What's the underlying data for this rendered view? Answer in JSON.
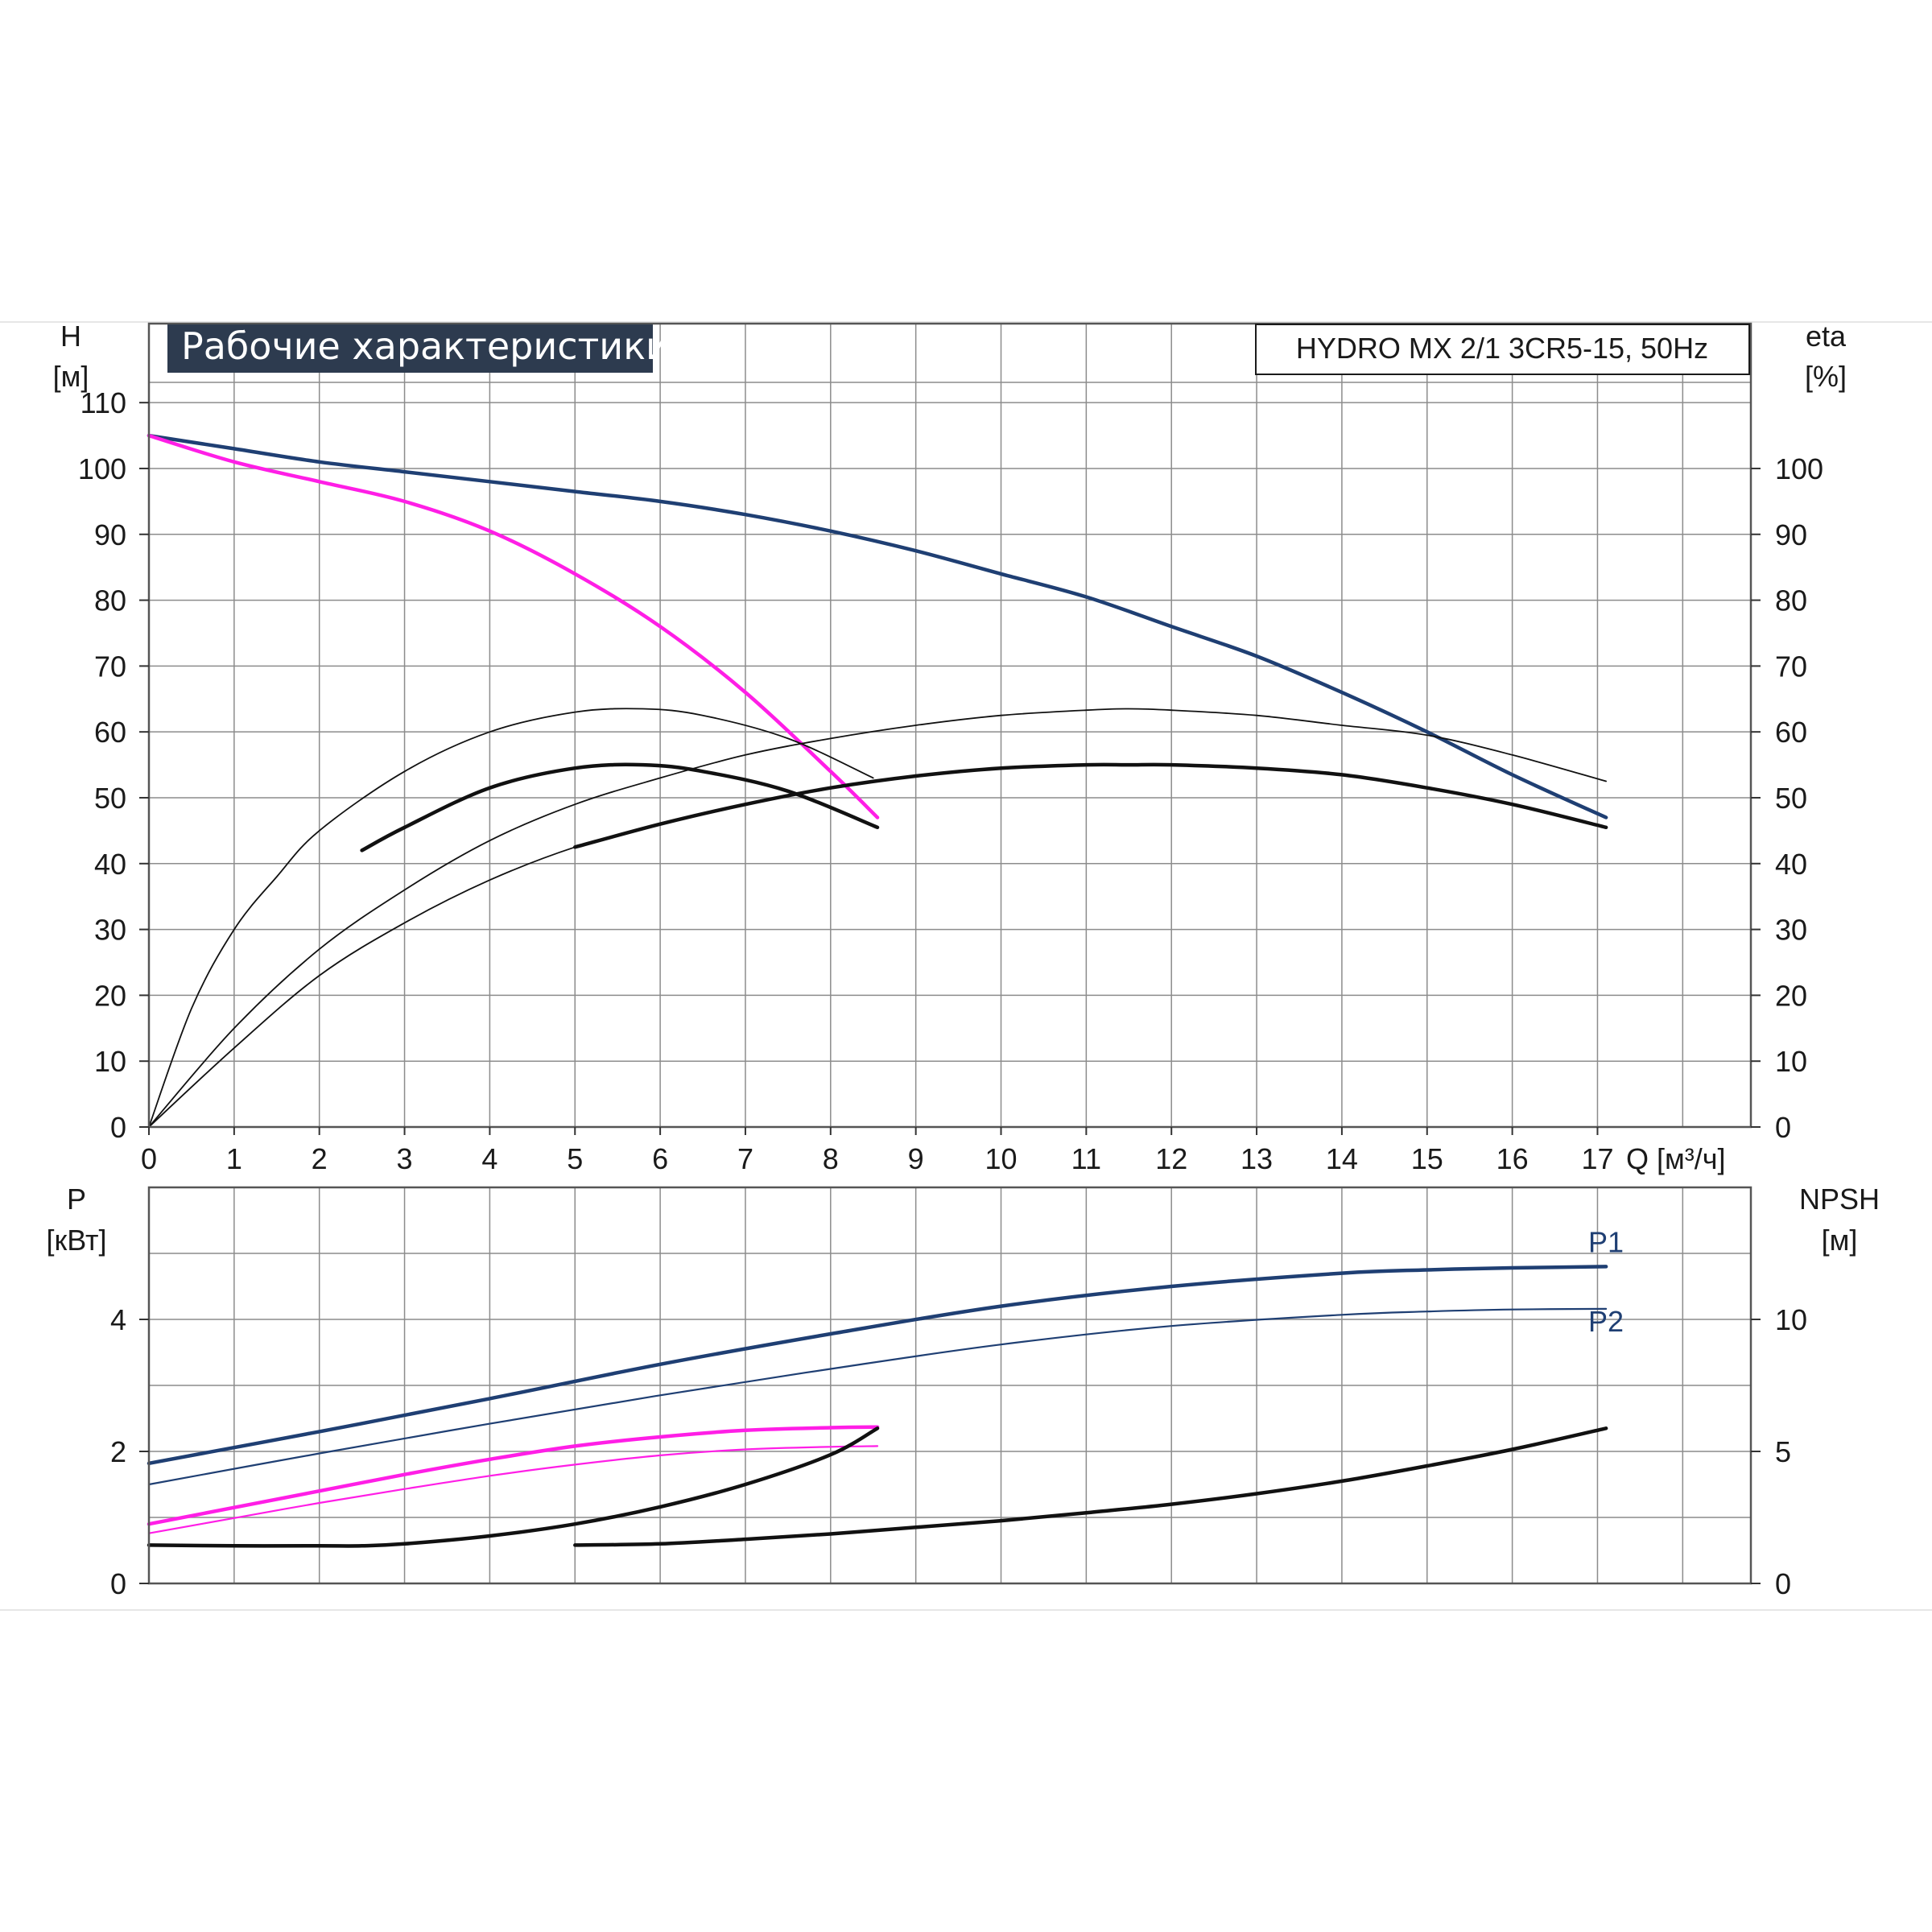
{
  "title": "Рабочие характеристики",
  "model": "HYDRO MX 2/1 3CR5-15, 50Hz",
  "colors": {
    "blue": "#1f3f73",
    "magenta": "#ff1ee6",
    "black": "#111111",
    "grid": "#8c8c8c",
    "title_bg": "#2d3b4f"
  },
  "chart_data": [
    {
      "type": "line",
      "xlabel": "Q [м³/ч]",
      "xlim": [
        0,
        18.8
      ],
      "x_ticks": [
        0,
        1,
        2,
        3,
        4,
        5,
        6,
        7,
        8,
        9,
        10,
        11,
        12,
        13,
        14,
        15,
        16,
        17
      ],
      "left_axis": {
        "label_top": "H",
        "label_unit": "[м]",
        "ylim": [
          0,
          122
        ],
        "ticks": [
          0,
          10,
          20,
          30,
          40,
          50,
          60,
          70,
          80,
          90,
          100,
          110
        ]
      },
      "right_axis": {
        "label_top": "eta",
        "label_unit": "[%]",
        "ylim": [
          0,
          122
        ],
        "ticks": [
          0,
          10,
          20,
          30,
          40,
          50,
          60,
          70,
          80,
          90,
          100
        ]
      },
      "grid": true,
      "series": [
        {
          "key": "h_two",
          "color": "blue",
          "width": 4.5,
          "x": [
            0,
            1,
            2,
            3,
            4,
            5,
            6,
            7,
            8,
            9,
            10,
            11,
            12,
            13,
            14,
            15,
            16,
            17.1
          ],
          "y": [
            105,
            103,
            101,
            99.5,
            98,
            96.5,
            95,
            93,
            90.5,
            87.5,
            84,
            80.5,
            76,
            71.5,
            66,
            60,
            53.5,
            47
          ]
        },
        {
          "key": "h_one",
          "color": "magenta",
          "width": 4.5,
          "x": [
            0,
            1,
            2,
            3,
            4,
            5,
            6,
            7,
            8,
            8.55
          ],
          "y": [
            105,
            101,
            98,
            95,
            90.5,
            84,
            76,
            66,
            54,
            47
          ]
        },
        {
          "key": "eta_one_thin",
          "color": "black",
          "width": 1.8,
          "x": [
            0,
            0.5,
            1,
            1.5,
            2,
            3,
            4,
            5,
            5.8,
            6.5,
            7.5,
            8.5
          ],
          "y": [
            0,
            18,
            30,
            38,
            45,
            54,
            60,
            63,
            63.5,
            62.5,
            59,
            53
          ]
        },
        {
          "key": "eta_one_thick",
          "color": "black",
          "width": 4.5,
          "x": [
            2.5,
            3,
            4,
            5,
            5.8,
            6.5,
            7.5,
            8.55
          ],
          "y": [
            42,
            45.5,
            51.5,
            54.5,
            55,
            54,
            51,
            45.5
          ]
        },
        {
          "key": "eta_two_thin",
          "color": "black",
          "width": 1.8,
          "x": [
            0,
            1,
            2,
            3,
            4,
            5,
            6,
            7,
            8,
            9,
            10,
            11,
            11.5,
            12,
            13,
            14,
            15,
            16,
            17.1
          ],
          "y": [
            0,
            15,
            27,
            36,
            43.5,
            49,
            53,
            56.5,
            59,
            61,
            62.5,
            63.3,
            63.5,
            63.3,
            62.5,
            61,
            59.5,
            56.5,
            52.5
          ]
        },
        {
          "key": "eta_two_thin_b",
          "color": "black",
          "width": 1.8,
          "x": [
            0,
            1,
            2,
            3,
            4,
            5,
            6,
            7,
            8,
            9,
            10,
            11,
            11.5,
            12,
            13,
            14,
            15,
            16,
            17.1
          ],
          "y": [
            0,
            12,
            23,
            31,
            37.5,
            42.5,
            46,
            49,
            51.5,
            53.3,
            54.5,
            55,
            55,
            55,
            54.5,
            53.5,
            51.5,
            49,
            45.5
          ]
        },
        {
          "key": "eta_two_thick",
          "color": "black",
          "width": 4.5,
          "x": [
            5,
            6,
            7,
            8,
            9,
            10,
            11,
            11.5,
            12,
            13,
            14,
            15,
            16,
            17.1
          ],
          "y": [
            42.5,
            46,
            49,
            51.5,
            53.3,
            54.5,
            55,
            55,
            55,
            54.5,
            53.5,
            51.5,
            49,
            45.5
          ]
        }
      ],
      "annotations": []
    },
    {
      "type": "line",
      "xlim": [
        0,
        18.8
      ],
      "left_axis": {
        "label_top": "P",
        "label_unit": "[кВт]",
        "ylim": [
          0,
          6
        ],
        "ticks": [
          0,
          2,
          4
        ]
      },
      "right_axis": {
        "label_top": "NPSH",
        "label_unit": "[м]",
        "ylim": [
          0,
          15
        ],
        "ticks": [
          0,
          5,
          10
        ]
      },
      "grid": true,
      "series": [
        {
          "key": "p1_two",
          "name": "P1",
          "color": "blue",
          "width": 4.5,
          "x": [
            0,
            2,
            4,
            6,
            8,
            10,
            12,
            14,
            15,
            16,
            17.1
          ],
          "y": [
            1.82,
            2.3,
            2.8,
            3.32,
            3.78,
            4.2,
            4.5,
            4.7,
            4.75,
            4.78,
            4.8
          ]
        },
        {
          "key": "p2_two",
          "name": "P2",
          "color": "blue",
          "width": 2.2,
          "x": [
            0,
            2,
            4,
            6,
            8,
            10,
            12,
            14,
            15,
            16,
            17.1
          ],
          "y": [
            1.5,
            1.97,
            2.42,
            2.85,
            3.25,
            3.62,
            3.9,
            4.07,
            4.12,
            4.15,
            4.16
          ]
        },
        {
          "key": "p1_one",
          "color": "magenta",
          "width": 4.5,
          "x": [
            0,
            1,
            2,
            3,
            4,
            5,
            6,
            7,
            8,
            8.55
          ],
          "y": [
            0.9,
            1.15,
            1.4,
            1.65,
            1.88,
            2.08,
            2.22,
            2.32,
            2.36,
            2.37
          ]
        },
        {
          "key": "p2_one",
          "color": "magenta",
          "width": 2.2,
          "x": [
            0,
            1,
            2,
            3,
            4,
            5,
            6,
            7,
            8,
            8.55
          ],
          "y": [
            0.76,
            0.99,
            1.22,
            1.43,
            1.63,
            1.8,
            1.94,
            2.03,
            2.07,
            2.08
          ]
        },
        {
          "key": "npsh_one",
          "color": "black",
          "width": 4.5,
          "x": [
            0,
            1,
            2,
            2.5,
            3,
            4,
            5,
            6,
            7,
            8,
            8.55
          ],
          "y": [
            0.58,
            0.57,
            0.57,
            0.57,
            0.6,
            0.72,
            0.9,
            1.16,
            1.5,
            1.95,
            2.35
          ]
        },
        {
          "key": "npsh_two",
          "color": "black",
          "width": 4.5,
          "x": [
            5,
            6,
            7,
            8,
            9,
            10,
            11,
            12,
            13,
            14,
            15,
            16,
            17.1
          ],
          "y": [
            0.58,
            0.6,
            0.67,
            0.75,
            0.85,
            0.95,
            1.07,
            1.2,
            1.36,
            1.55,
            1.78,
            2.03,
            2.35
          ]
        }
      ],
      "labels": [
        {
          "text": "P1",
          "x": 17.1,
          "y": 5.02
        },
        {
          "text": "P2",
          "x": 17.1,
          "y": 3.82
        }
      ]
    }
  ]
}
